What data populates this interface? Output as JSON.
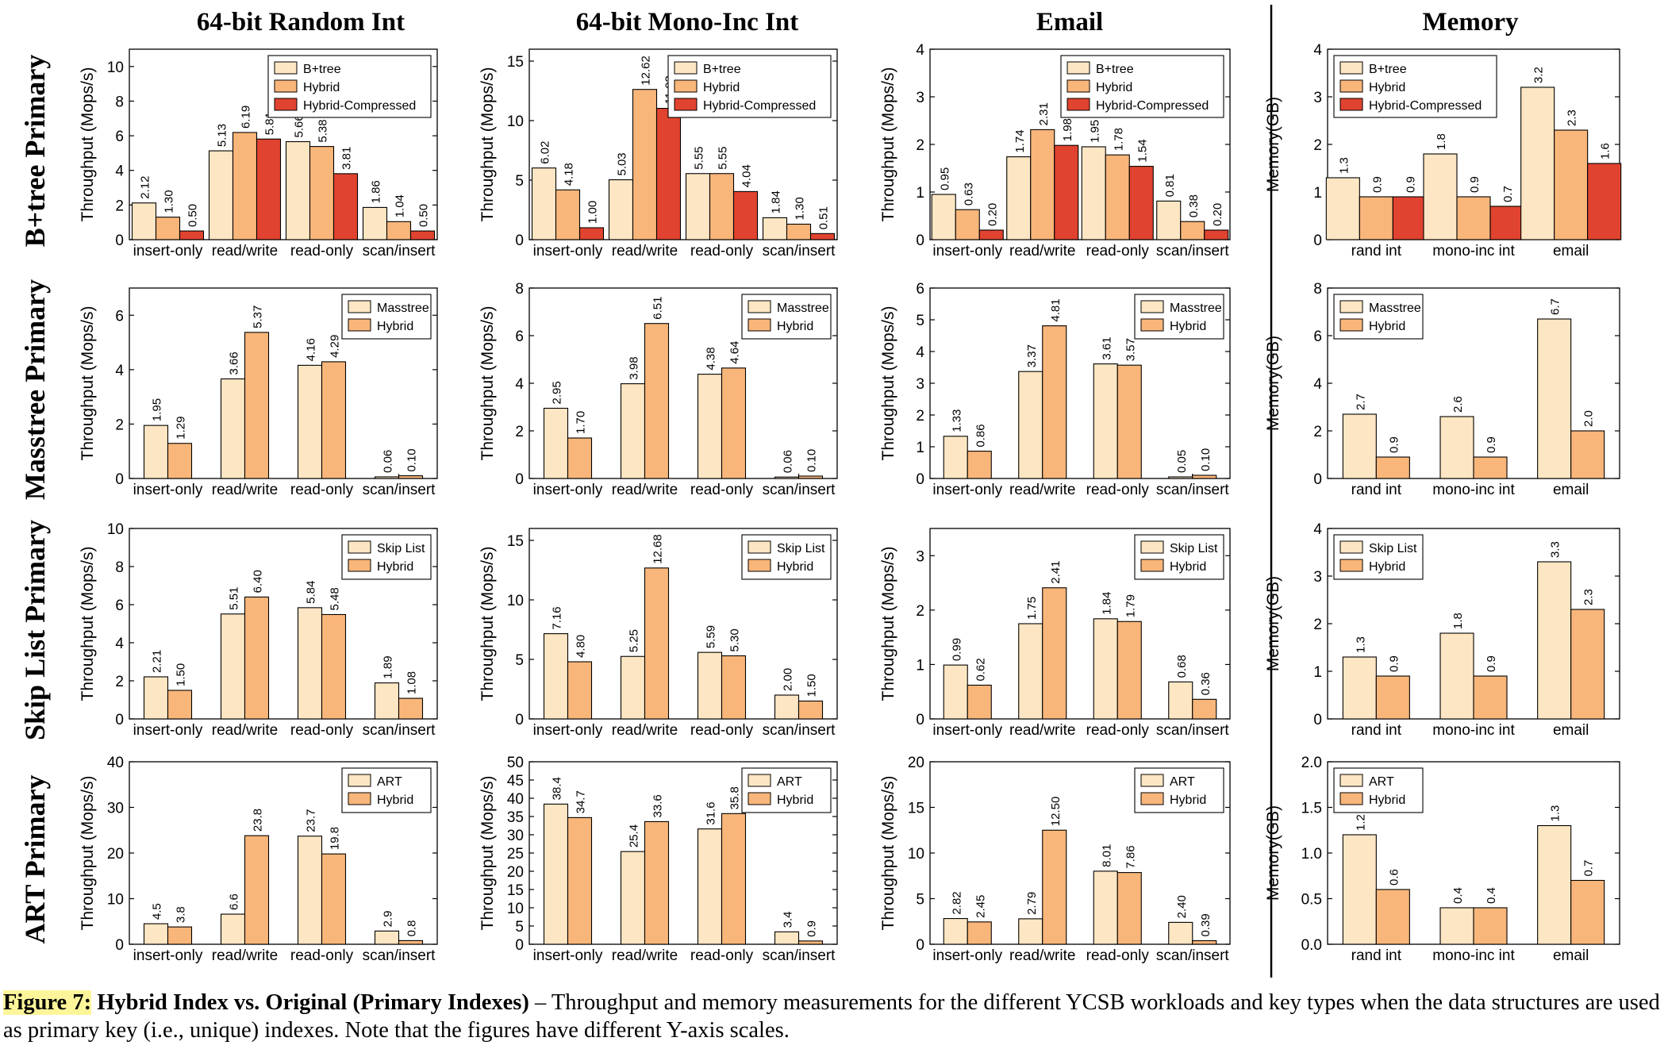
{
  "columns": [
    "64-bit Random Int",
    "64-bit Mono-Inc Int",
    "Email",
    "Memory"
  ],
  "rows": [
    "B+tree Primary",
    "Masstree Primary",
    "Skip List Primary",
    "ART Primary"
  ],
  "workloads": [
    "insert-only",
    "read/write",
    "read-only",
    "scan/insert"
  ],
  "memory_categories": [
    "rand int",
    "mono-inc int",
    "email"
  ],
  "throughput_ylabel": "Throughput (Mops/s)",
  "memory_ylabel": "Memory(GB)",
  "colors": {
    "original": "#fde6c3",
    "hybrid": "#f9b67a",
    "hybrid_compressed": "#e0432f"
  },
  "caption": {
    "label": "Figure 7:",
    "title": "Hybrid Index vs. Original (Primary Indexes)",
    "text": " – Throughput and memory measurements for the different YCSB workloads and key types when the data structures are used as primary key (i.e., unique) indexes. Note that the figures have different Y-axis scales."
  },
  "chart_data": [
    {
      "type": "bar",
      "row": 0,
      "col": 0,
      "categories": [
        "insert-only",
        "read/write",
        "read-only",
        "scan/insert"
      ],
      "ylabel": "Throughput (Mops/s)",
      "ylim": [
        0,
        11
      ],
      "yticks": [
        0,
        2,
        4,
        6,
        8,
        10
      ],
      "tick_labels": [
        "0",
        "2",
        "4",
        "6",
        "8",
        "10"
      ],
      "series": [
        {
          "name": "B+tree",
          "values": [
            2.12,
            5.13,
            5.66,
            1.86
          ],
          "labels": [
            "2.12",
            "5.13",
            "5.66",
            "1.86"
          ]
        },
        {
          "name": "Hybrid",
          "values": [
            1.3,
            6.19,
            5.38,
            1.04
          ],
          "labels": [
            "1.30",
            "6.19",
            "5.38",
            "1.04"
          ]
        },
        {
          "name": "Hybrid-Compressed",
          "values": [
            0.5,
            5.81,
            3.81,
            0.5
          ],
          "labels": [
            "0.50",
            "5.81",
            "3.81",
            "0.50"
          ]
        }
      ]
    },
    {
      "type": "bar",
      "row": 0,
      "col": 1,
      "categories": [
        "insert-only",
        "read/write",
        "read-only",
        "scan/insert"
      ],
      "ylabel": "Throughput (Mops/s)",
      "ylim": [
        0,
        16
      ],
      "yticks": [
        0,
        5,
        10,
        15
      ],
      "tick_labels": [
        "0",
        "5",
        "10",
        "15"
      ],
      "series": [
        {
          "name": "B+tree",
          "values": [
            6.02,
            5.03,
            5.55,
            1.84
          ],
          "labels": [
            "6.02",
            "5.03",
            "5.55",
            "1.84"
          ]
        },
        {
          "name": "Hybrid",
          "values": [
            4.18,
            12.62,
            5.55,
            1.3
          ],
          "labels": [
            "4.18",
            "12.62",
            "5.55",
            "1.30"
          ]
        },
        {
          "name": "Hybrid-Compressed",
          "values": [
            1.0,
            11.03,
            4.04,
            0.51
          ],
          "labels": [
            "1.00",
            "11.03",
            "4.04",
            "0.51"
          ]
        }
      ]
    },
    {
      "type": "bar",
      "row": 0,
      "col": 2,
      "categories": [
        "insert-only",
        "read/write",
        "read-only",
        "scan/insert"
      ],
      "ylabel": "Throughput (Mops/s)",
      "ylim": [
        0,
        4
      ],
      "yticks": [
        0,
        1,
        2,
        3,
        4
      ],
      "tick_labels": [
        "0",
        "1",
        "2",
        "3",
        "4"
      ],
      "series": [
        {
          "name": "B+tree",
          "values": [
            0.95,
            1.74,
            1.95,
            0.81
          ],
          "labels": [
            "0.95",
            "1.74",
            "1.95",
            "0.81"
          ]
        },
        {
          "name": "Hybrid",
          "values": [
            0.63,
            2.31,
            1.78,
            0.38
          ],
          "labels": [
            "0.63",
            "2.31",
            "1.78",
            "0.38"
          ]
        },
        {
          "name": "Hybrid-Compressed",
          "values": [
            0.2,
            1.98,
            1.54,
            0.2
          ],
          "labels": [
            "0.20",
            "1.98",
            "1.54",
            "0.20"
          ]
        }
      ]
    },
    {
      "type": "bar",
      "row": 0,
      "col": 3,
      "categories": [
        "rand int",
        "mono-inc int",
        "email"
      ],
      "ylabel": "Memory(GB)",
      "ylim": [
        0,
        4
      ],
      "yticks": [
        0,
        1,
        2,
        3,
        4
      ],
      "tick_labels": [
        "0",
        "1",
        "2",
        "3",
        "4"
      ],
      "series": [
        {
          "name": "B+tree",
          "values": [
            1.3,
            1.8,
            3.2
          ],
          "labels": [
            "1.3",
            "1.8",
            "3.2"
          ]
        },
        {
          "name": "Hybrid",
          "values": [
            0.9,
            0.9,
            2.3
          ],
          "labels": [
            "0.9",
            "0.9",
            "2.3"
          ]
        },
        {
          "name": "Hybrid-Compressed",
          "values": [
            0.9,
            0.7,
            1.6
          ],
          "labels": [
            "0.9",
            "0.7",
            "1.6"
          ]
        }
      ]
    },
    {
      "type": "bar",
      "row": 1,
      "col": 0,
      "categories": [
        "insert-only",
        "read/write",
        "read-only",
        "scan/insert"
      ],
      "ylabel": "Throughput (Mops/s)",
      "ylim": [
        0,
        7
      ],
      "yticks": [
        0,
        2,
        4,
        6
      ],
      "tick_labels": [
        "0",
        "2",
        "4",
        "6"
      ],
      "series": [
        {
          "name": "Masstree",
          "values": [
            1.95,
            3.66,
            4.16,
            0.06
          ],
          "labels": [
            "1.95",
            "3.66",
            "4.16",
            "0.06"
          ]
        },
        {
          "name": "Hybrid",
          "values": [
            1.29,
            5.37,
            4.29,
            0.1
          ],
          "labels": [
            "1.29",
            "5.37",
            "4.29",
            "0.10"
          ]
        }
      ]
    },
    {
      "type": "bar",
      "row": 1,
      "col": 1,
      "categories": [
        "insert-only",
        "read/write",
        "read-only",
        "scan/insert"
      ],
      "ylabel": "Throughput (Mops/s)",
      "ylim": [
        0,
        8
      ],
      "yticks": [
        0,
        2,
        4,
        6,
        8
      ],
      "tick_labels": [
        "0",
        "2",
        "4",
        "6",
        "8"
      ],
      "series": [
        {
          "name": "Masstree",
          "values": [
            2.95,
            3.98,
            4.38,
            0.06
          ],
          "labels": [
            "2.95",
            "3.98",
            "4.38",
            "0.06"
          ]
        },
        {
          "name": "Hybrid",
          "values": [
            1.7,
            6.51,
            4.64,
            0.1
          ],
          "labels": [
            "1.70",
            "6.51",
            "4.64",
            "0.10"
          ]
        }
      ]
    },
    {
      "type": "bar",
      "row": 1,
      "col": 2,
      "categories": [
        "insert-only",
        "read/write",
        "read-only",
        "scan/insert"
      ],
      "ylabel": "Throughput (Mops/s)",
      "ylim": [
        0,
        6
      ],
      "yticks": [
        0,
        1,
        2,
        3,
        4,
        5,
        6
      ],
      "tick_labels": [
        "0",
        "1",
        "2",
        "3",
        "4",
        "5",
        "6"
      ],
      "series": [
        {
          "name": "Masstree",
          "values": [
            1.33,
            3.37,
            3.61,
            0.05
          ],
          "labels": [
            "1.33",
            "3.37",
            "3.61",
            "0.05"
          ]
        },
        {
          "name": "Hybrid",
          "values": [
            0.86,
            4.81,
            3.57,
            0.1
          ],
          "labels": [
            "0.86",
            "4.81",
            "3.57",
            "0.10"
          ]
        }
      ]
    },
    {
      "type": "bar",
      "row": 1,
      "col": 3,
      "categories": [
        "rand int",
        "mono-inc int",
        "email"
      ],
      "ylabel": "Memory(GB)",
      "ylim": [
        0,
        8
      ],
      "yticks": [
        0,
        2,
        4,
        6,
        8
      ],
      "tick_labels": [
        "0",
        "2",
        "4",
        "6",
        "8"
      ],
      "series": [
        {
          "name": "Masstree",
          "values": [
            2.7,
            2.6,
            6.7
          ],
          "labels": [
            "2.7",
            "2.6",
            "6.7"
          ]
        },
        {
          "name": "Hybrid",
          "values": [
            0.9,
            0.9,
            2.0
          ],
          "labels": [
            "0.9",
            "0.9",
            "2.0"
          ]
        }
      ]
    },
    {
      "type": "bar",
      "row": 2,
      "col": 0,
      "categories": [
        "insert-only",
        "read/write",
        "read-only",
        "scan/insert"
      ],
      "ylabel": "Throughput (Mops/s)",
      "ylim": [
        0,
        10
      ],
      "yticks": [
        0,
        2,
        4,
        6,
        8,
        10
      ],
      "tick_labels": [
        "0",
        "2",
        "4",
        "6",
        "8",
        "10"
      ],
      "series": [
        {
          "name": "Skip List",
          "values": [
            2.21,
            5.51,
            5.84,
            1.89
          ],
          "labels": [
            "2.21",
            "5.51",
            "5.84",
            "1.89"
          ]
        },
        {
          "name": "Hybrid",
          "values": [
            1.5,
            6.4,
            5.48,
            1.08
          ],
          "labels": [
            "1.50",
            "6.40",
            "5.48",
            "1.08"
          ]
        }
      ]
    },
    {
      "type": "bar",
      "row": 2,
      "col": 1,
      "categories": [
        "insert-only",
        "read/write",
        "read-only",
        "scan/insert"
      ],
      "ylabel": "Throughput (Mops/s)",
      "ylim": [
        0,
        16
      ],
      "yticks": [
        0,
        5,
        10,
        15
      ],
      "tick_labels": [
        "0",
        "5",
        "10",
        "15"
      ],
      "series": [
        {
          "name": "Skip List",
          "values": [
            7.16,
            5.25,
            5.59,
            2.0
          ],
          "labels": [
            "7.16",
            "5.25",
            "5.59",
            "2.00"
          ]
        },
        {
          "name": "Hybrid",
          "values": [
            4.8,
            12.68,
            5.3,
            1.5
          ],
          "labels": [
            "4.80",
            "12.68",
            "5.30",
            "1.50"
          ]
        }
      ]
    },
    {
      "type": "bar",
      "row": 2,
      "col": 2,
      "categories": [
        "insert-only",
        "read/write",
        "read-only",
        "scan/insert"
      ],
      "ylabel": "Throughput (Mops/s)",
      "ylim": [
        0,
        3.5
      ],
      "yticks": [
        0,
        1,
        2,
        3
      ],
      "tick_labels": [
        "0",
        "1",
        "2",
        "3"
      ],
      "series": [
        {
          "name": "Skip List",
          "values": [
            0.99,
            1.75,
            1.84,
            0.68
          ],
          "labels": [
            "0.99",
            "1.75",
            "1.84",
            "0.68"
          ]
        },
        {
          "name": "Hybrid",
          "values": [
            0.62,
            2.41,
            1.79,
            0.36
          ],
          "labels": [
            "0.62",
            "2.41",
            "1.79",
            "0.36"
          ]
        }
      ]
    },
    {
      "type": "bar",
      "row": 2,
      "col": 3,
      "categories": [
        "rand int",
        "mono-inc int",
        "email"
      ],
      "ylabel": "Memory(GB)",
      "ylim": [
        0,
        4
      ],
      "yticks": [
        0,
        1,
        2,
        3,
        4
      ],
      "tick_labels": [
        "0",
        "1",
        "2",
        "3",
        "4"
      ],
      "series": [
        {
          "name": "Skip List",
          "values": [
            1.3,
            1.8,
            3.3
          ],
          "labels": [
            "1.3",
            "1.8",
            "3.3"
          ]
        },
        {
          "name": "Hybrid",
          "values": [
            0.9,
            0.9,
            2.3
          ],
          "labels": [
            "0.9",
            "0.9",
            "2.3"
          ]
        }
      ]
    },
    {
      "type": "bar",
      "row": 3,
      "col": 0,
      "categories": [
        "insert-only",
        "read/write",
        "read-only",
        "scan/insert"
      ],
      "ylabel": "Throughput (Mops/s)",
      "ylim": [
        0,
        40
      ],
      "yticks": [
        0,
        10,
        20,
        30,
        40
      ],
      "tick_labels": [
        "0",
        "10",
        "20",
        "30",
        "40"
      ],
      "series": [
        {
          "name": "ART",
          "values": [
            4.5,
            6.6,
            23.7,
            2.9
          ],
          "labels": [
            "4.5",
            "6.6",
            "23.7",
            "2.9"
          ]
        },
        {
          "name": "Hybrid",
          "values": [
            3.8,
            23.8,
            19.8,
            0.8
          ],
          "labels": [
            "3.8",
            "23.8",
            "19.8",
            "0.8"
          ]
        }
      ]
    },
    {
      "type": "bar",
      "row": 3,
      "col": 1,
      "categories": [
        "insert-only",
        "read/write",
        "read-only",
        "scan/insert"
      ],
      "ylabel": "Throughput (Mops/s)",
      "ylim": [
        0,
        50
      ],
      "yticks": [
        0,
        5,
        10,
        15,
        20,
        25,
        30,
        35,
        40,
        45,
        50
      ],
      "tick_labels": [
        "0",
        "5",
        "10",
        "15",
        "20",
        "25",
        "30",
        "35",
        "40",
        "45",
        "50"
      ],
      "series": [
        {
          "name": "ART",
          "values": [
            38.4,
            25.4,
            31.6,
            3.4
          ],
          "labels": [
            "38.4",
            "25.4",
            "31.6",
            "3.4"
          ]
        },
        {
          "name": "Hybrid",
          "values": [
            34.7,
            33.6,
            35.8,
            0.9
          ],
          "labels": [
            "34.7",
            "33.6",
            "35.8",
            "0.9"
          ]
        }
      ]
    },
    {
      "type": "bar",
      "row": 3,
      "col": 2,
      "categories": [
        "insert-only",
        "read/write",
        "read-only",
        "scan/insert"
      ],
      "ylabel": "Throughput (Mops/s)",
      "ylim": [
        0,
        20
      ],
      "yticks": [
        0,
        5,
        10,
        15,
        20
      ],
      "tick_labels": [
        "0",
        "5",
        "10",
        "15",
        "20"
      ],
      "series": [
        {
          "name": "ART",
          "values": [
            2.82,
            2.79,
            8.01,
            2.4
          ],
          "labels": [
            "2.82",
            "2.79",
            "8.01",
            "2.40"
          ]
        },
        {
          "name": "Hybrid",
          "values": [
            2.45,
            12.5,
            7.86,
            0.39
          ],
          "labels": [
            "2.45",
            "12.50",
            "7.86",
            "0.39"
          ]
        }
      ]
    },
    {
      "type": "bar",
      "row": 3,
      "col": 3,
      "categories": [
        "rand int",
        "mono-inc int",
        "email"
      ],
      "ylabel": "Memory(GB)",
      "ylim": [
        0,
        2
      ],
      "yticks": [
        0,
        0.5,
        1,
        1.5,
        2
      ],
      "tick_labels": [
        "0.0",
        "0.5",
        "1.0",
        "1.5",
        "2.0"
      ],
      "series": [
        {
          "name": "ART",
          "values": [
            1.2,
            0.4,
            1.3
          ],
          "labels": [
            "1.2",
            "0.4",
            "1.3"
          ]
        },
        {
          "name": "Hybrid",
          "values": [
            0.6,
            0.4,
            0.7
          ],
          "labels": [
            "0.6",
            "0.4",
            "0.7"
          ]
        }
      ]
    }
  ]
}
